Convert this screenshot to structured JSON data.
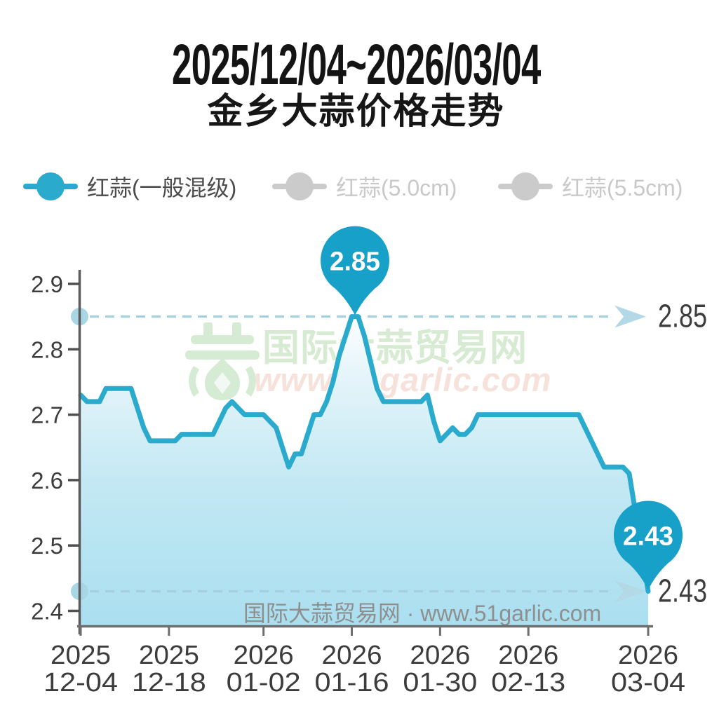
{
  "title": "2025/12/04~2026/03/04",
  "subtitle": "金乡大蒜价格走势",
  "legend": {
    "items": [
      {
        "label": "红蒜(一般混级)",
        "color": "#2aabce",
        "text_color": "#4c4c4c",
        "active": true
      },
      {
        "label": "红蒜(5.0cm)",
        "color": "#cbcbcb",
        "text_color": "#c9c9c9",
        "active": false
      },
      {
        "label": "红蒜(5.5cm)",
        "color": "#cbcbcb",
        "text_color": "#c9c9c9",
        "active": false
      }
    ]
  },
  "watermark": {
    "brand_cn": "国际大蒜贸易网",
    "brand_url": "www.51garlic.com",
    "footer": "国际大蒜贸易网 · www.51garlic.com"
  },
  "chart_data": {
    "type": "line",
    "series_name": "红蒜(一般混级)",
    "x_start": "2025-12-04",
    "x_end": "2026-03-04",
    "days_span": 90,
    "ylim": [
      2.4,
      2.9
    ],
    "y_ticks": [
      2.9,
      2.8,
      2.7,
      2.6,
      2.5,
      2.4
    ],
    "x_ticks": [
      {
        "year": "2025",
        "md": "12-04",
        "day": 0
      },
      {
        "year": "2025",
        "md": "12-18",
        "day": 14
      },
      {
        "year": "2026",
        "md": "01-02",
        "day": 29
      },
      {
        "year": "2026",
        "md": "01-16",
        "day": 43
      },
      {
        "year": "2026",
        "md": "01-30",
        "day": 57
      },
      {
        "year": "2026",
        "md": "02-13",
        "day": 71
      },
      {
        "year": "2026",
        "md": "03-04",
        "day": 90
      }
    ],
    "values": [
      2.73,
      2.72,
      2.72,
      2.72,
      2.74,
      2.74,
      2.74,
      2.74,
      2.74,
      2.71,
      2.68,
      2.66,
      2.66,
      2.66,
      2.66,
      2.66,
      2.67,
      2.67,
      2.67,
      2.67,
      2.67,
      2.67,
      2.69,
      2.71,
      2.72,
      2.71,
      2.7,
      2.7,
      2.7,
      2.7,
      2.69,
      2.68,
      2.65,
      2.62,
      2.64,
      2.64,
      2.67,
      2.7,
      2.7,
      2.72,
      2.75,
      2.79,
      2.82,
      2.85,
      2.85,
      2.82,
      2.78,
      2.74,
      2.72,
      2.72,
      2.72,
      2.72,
      2.72,
      2.72,
      2.72,
      2.73,
      2.69,
      2.66,
      2.67,
      2.68,
      2.67,
      2.67,
      2.68,
      2.7,
      2.7,
      2.7,
      2.7,
      2.7,
      2.7,
      2.7,
      2.7,
      2.7,
      2.7,
      2.7,
      2.7,
      2.7,
      2.7,
      2.7,
      2.7,
      2.7,
      2.68,
      2.66,
      2.64,
      2.62,
      2.62,
      2.62,
      2.62,
      2.61,
      2.55,
      2.49,
      2.43
    ],
    "annotations": [
      {
        "kind": "max",
        "label": "2.85",
        "day": 43.5,
        "value": 2.85
      },
      {
        "kind": "last",
        "label": "2.43",
        "day": 90,
        "value": 2.43
      }
    ],
    "reference_lines": [
      {
        "value": 2.85,
        "label": "2.85"
      },
      {
        "value": 2.43,
        "label": "2.43"
      }
    ],
    "line_color": "#2aabce",
    "balloon_color": "#17a0c8",
    "dash_color": "#a5cfdc",
    "marker_dot_color": "#a9d6e4",
    "arrow_color": "#b3d9e6",
    "axis_color": "#6e6e6e",
    "legend_position": "top",
    "grid": false
  }
}
